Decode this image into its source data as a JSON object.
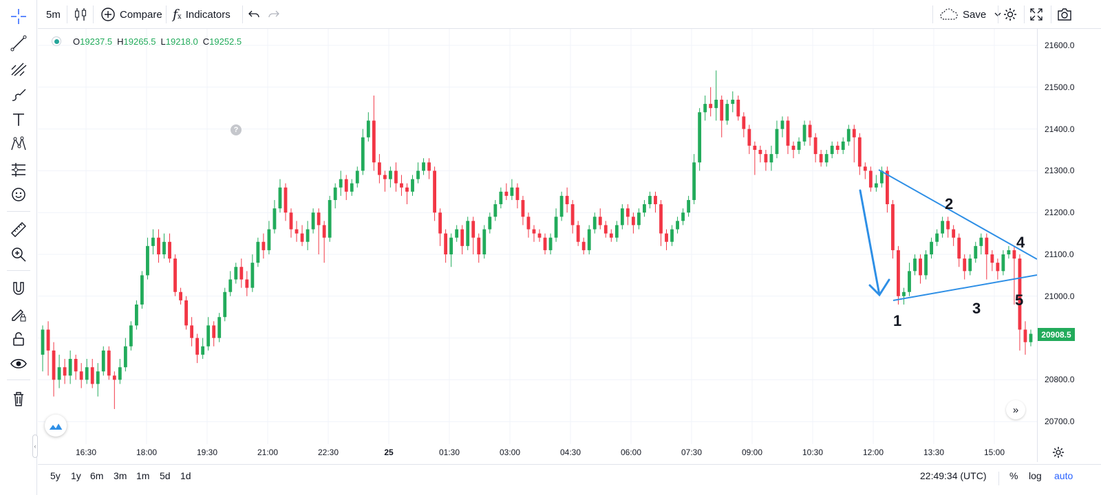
{
  "toolbar": {
    "interval": "5m",
    "compare_label": "Compare",
    "indicators_label": "Indicators",
    "save_label": "Save"
  },
  "legend": {
    "o_label": "O",
    "o_value": "19237.5",
    "h_label": "H",
    "h_value": "19265.5",
    "l_label": "L",
    "l_value": "19218.0",
    "c_label": "C",
    "c_value": "19252.5"
  },
  "help_text": "?",
  "price_scale": {
    "labels": [
      "21600.0",
      "21500.0",
      "21400.0",
      "21300.0",
      "21200.0",
      "21100.0",
      "21000.0",
      "20900.0",
      "20800.0",
      "20700.0"
    ],
    "last_price": "20908.5"
  },
  "time_axis": {
    "labels": [
      "16:30",
      "18:00",
      "19:30",
      "21:00",
      "22:30",
      "25",
      "01:30",
      "03:00",
      "04:30",
      "06:00",
      "07:30",
      "09:00",
      "10:30",
      "12:00",
      "13:30",
      "15:00"
    ]
  },
  "ranges": [
    "5y",
    "1y",
    "6m",
    "3m",
    "1m",
    "5d",
    "1d"
  ],
  "clock": "22:49:34 (UTC)",
  "scale_options": {
    "percent": "%",
    "log": "log",
    "auto": "auto"
  },
  "annotations": [
    "1",
    "2",
    "3",
    "4",
    "5"
  ],
  "colors": {
    "up": "#22ab5b",
    "down": "#f23645",
    "drawing": "#2e8fe6",
    "accent": "#2962ff"
  },
  "icons": [
    "crosshair-icon",
    "trend-line-icon",
    "fib-icon",
    "brush-icon",
    "text-icon",
    "pattern-icon",
    "forecast-icon",
    "emoji-icon",
    "ruler-icon",
    "zoom-in-icon",
    "magnet-icon",
    "lock-drawings-icon",
    "lock-icon",
    "eye-icon",
    "trash-icon"
  ],
  "chart_data": {
    "type": "candlestick",
    "instrument_note": "",
    "ylim": [
      20680,
      21640
    ],
    "y_ticks": [
      20700,
      20800,
      20900,
      21000,
      21100,
      21200,
      21300,
      21400,
      21500,
      21600
    ],
    "series": [
      {
        "name": "",
        "values": [
          [
            20860,
            20920,
            20820,
            20930
          ],
          [
            20920,
            20870,
            20810,
            20940
          ],
          [
            20870,
            20800,
            20760,
            20890
          ],
          [
            20800,
            20830,
            20780,
            20860
          ],
          [
            20830,
            20810,
            20790,
            20850
          ],
          [
            20810,
            20850,
            20790,
            20870
          ],
          [
            20850,
            20820,
            20800,
            20860
          ],
          [
            20820,
            20800,
            20780,
            20840
          ],
          [
            20800,
            20830,
            20790,
            20850
          ],
          [
            20830,
            20790,
            20780,
            20850
          ],
          [
            20790,
            20820,
            20760,
            20840
          ],
          [
            20820,
            20870,
            20810,
            20880
          ],
          [
            20870,
            20810,
            20800,
            20880
          ],
          [
            20810,
            20800,
            20730,
            20820
          ],
          [
            20800,
            20830,
            20790,
            20850
          ],
          [
            20830,
            20880,
            20820,
            20900
          ],
          [
            20880,
            20930,
            20870,
            20940
          ],
          [
            20930,
            20980,
            20920,
            20990
          ],
          [
            20980,
            21050,
            20970,
            21060
          ],
          [
            21050,
            21120,
            21040,
            21140
          ],
          [
            21120,
            21140,
            21100,
            21160
          ],
          [
            21140,
            21100,
            21080,
            21160
          ],
          [
            21100,
            21130,
            21090,
            21150
          ],
          [
            21130,
            21090,
            21080,
            21150
          ],
          [
            21090,
            21010,
            21000,
            21100
          ],
          [
            21010,
            20990,
            20980,
            21020
          ],
          [
            20990,
            20930,
            20920,
            21000
          ],
          [
            20930,
            20900,
            20880,
            20950
          ],
          [
            20900,
            20860,
            20840,
            20910
          ],
          [
            20860,
            20880,
            20850,
            20900
          ],
          [
            20880,
            20930,
            20870,
            20950
          ],
          [
            20930,
            20900,
            20880,
            20940
          ],
          [
            20900,
            20950,
            20890,
            20960
          ],
          [
            20950,
            21010,
            20940,
            21020
          ],
          [
            21010,
            21040,
            21000,
            21060
          ],
          [
            21040,
            21070,
            21030,
            21080
          ],
          [
            21070,
            21040,
            21020,
            21090
          ],
          [
            21040,
            21020,
            21000,
            21060
          ],
          [
            21020,
            21080,
            21010,
            21100
          ],
          [
            21080,
            21130,
            21070,
            21140
          ],
          [
            21130,
            21110,
            21090,
            21150
          ],
          [
            21110,
            21160,
            21100,
            21180
          ],
          [
            21160,
            21210,
            21150,
            21230
          ],
          [
            21210,
            21260,
            21200,
            21280
          ],
          [
            21260,
            21200,
            21180,
            21270
          ],
          [
            21200,
            21160,
            21140,
            21210
          ],
          [
            21160,
            21150,
            21130,
            21180
          ],
          [
            21150,
            21130,
            21120,
            21170
          ],
          [
            21130,
            21160,
            21110,
            21180
          ],
          [
            21160,
            21200,
            21150,
            21210
          ],
          [
            21200,
            21170,
            21100,
            21210
          ],
          [
            21170,
            21140,
            21080,
            21180
          ],
          [
            21140,
            21230,
            21130,
            21240
          ],
          [
            21230,
            21260,
            21210,
            21270
          ],
          [
            21260,
            21280,
            21240,
            21300
          ],
          [
            21280,
            21250,
            21230,
            21290
          ],
          [
            21250,
            21270,
            21240,
            21280
          ],
          [
            21270,
            21300,
            21260,
            21310
          ],
          [
            21300,
            21380,
            21290,
            21400
          ],
          [
            21380,
            21420,
            21370,
            21440
          ],
          [
            21420,
            21320,
            21300,
            21480
          ],
          [
            21320,
            21290,
            21270,
            21340
          ],
          [
            21290,
            21280,
            21250,
            21300
          ],
          [
            21280,
            21300,
            21260,
            21310
          ],
          [
            21300,
            21270,
            21250,
            21320
          ],
          [
            21270,
            21260,
            21240,
            21290
          ],
          [
            21260,
            21250,
            21220,
            21270
          ],
          [
            21250,
            21280,
            21240,
            21290
          ],
          [
            21280,
            21300,
            21270,
            21320
          ],
          [
            21300,
            21320,
            21290,
            21330
          ],
          [
            21320,
            21300,
            21280,
            21330
          ],
          [
            21300,
            21200,
            21180,
            21310
          ],
          [
            21200,
            21150,
            21120,
            21210
          ],
          [
            21150,
            21100,
            21080,
            21160
          ],
          [
            21100,
            21140,
            21070,
            21150
          ],
          [
            21140,
            21160,
            21130,
            21170
          ],
          [
            21160,
            21120,
            21100,
            21170
          ],
          [
            21120,
            21180,
            21110,
            21190
          ],
          [
            21180,
            21140,
            21100,
            21190
          ],
          [
            21140,
            21100,
            21080,
            21150
          ],
          [
            21100,
            21160,
            21090,
            21170
          ],
          [
            21160,
            21190,
            21150,
            21200
          ],
          [
            21190,
            21220,
            21180,
            21230
          ],
          [
            21220,
            21250,
            21210,
            21260
          ],
          [
            21250,
            21240,
            21230,
            21270
          ],
          [
            21240,
            21260,
            21230,
            21280
          ],
          [
            21260,
            21230,
            21210,
            21270
          ],
          [
            21230,
            21190,
            21170,
            21240
          ],
          [
            21190,
            21160,
            21140,
            21200
          ],
          [
            21160,
            21150,
            21130,
            21170
          ],
          [
            21150,
            21140,
            21130,
            21160
          ],
          [
            21140,
            21110,
            21100,
            21150
          ],
          [
            21110,
            21140,
            21100,
            21150
          ],
          [
            21140,
            21190,
            21130,
            21210
          ],
          [
            21190,
            21240,
            21180,
            21250
          ],
          [
            21240,
            21220,
            21200,
            21260
          ],
          [
            21220,
            21170,
            21150,
            21230
          ],
          [
            21170,
            21130,
            21120,
            21180
          ],
          [
            21130,
            21110,
            21100,
            21140
          ],
          [
            21110,
            21160,
            21100,
            21170
          ],
          [
            21160,
            21190,
            21150,
            21200
          ],
          [
            21190,
            21170,
            21160,
            21210
          ],
          [
            21170,
            21150,
            21140,
            21180
          ],
          [
            21150,
            21140,
            21130,
            21160
          ],
          [
            21140,
            21170,
            21130,
            21180
          ],
          [
            21170,
            21210,
            21160,
            21220
          ],
          [
            21210,
            21190,
            21170,
            21220
          ],
          [
            21190,
            21170,
            21150,
            21200
          ],
          [
            21170,
            21200,
            21160,
            21210
          ],
          [
            21200,
            21220,
            21190,
            21230
          ],
          [
            21220,
            21240,
            21210,
            21250
          ],
          [
            21240,
            21220,
            21200,
            21250
          ],
          [
            21220,
            21150,
            21120,
            21230
          ],
          [
            21150,
            21130,
            21110,
            21160
          ],
          [
            21130,
            21160,
            21120,
            21170
          ],
          [
            21160,
            21180,
            21150,
            21190
          ],
          [
            21180,
            21200,
            21170,
            21210
          ],
          [
            21200,
            21230,
            21190,
            21240
          ],
          [
            21230,
            21320,
            21220,
            21340
          ],
          [
            21320,
            21440,
            21300,
            21450
          ],
          [
            21440,
            21460,
            21420,
            21480
          ],
          [
            21460,
            21450,
            21430,
            21500
          ],
          [
            21450,
            21470,
            21420,
            21540
          ],
          [
            21470,
            21420,
            21380,
            21480
          ],
          [
            21420,
            21460,
            21410,
            21470
          ],
          [
            21460,
            21470,
            21440,
            21490
          ],
          [
            21470,
            21430,
            21420,
            21480
          ],
          [
            21430,
            21400,
            21380,
            21440
          ],
          [
            21400,
            21360,
            21340,
            21410
          ],
          [
            21360,
            21350,
            21290,
            21370
          ],
          [
            21350,
            21340,
            21320,
            21360
          ],
          [
            21340,
            21320,
            21300,
            21350
          ],
          [
            21320,
            21340,
            21300,
            21360
          ],
          [
            21340,
            21400,
            21330,
            21420
          ],
          [
            21400,
            21420,
            21380,
            21430
          ],
          [
            21420,
            21360,
            21340,
            21430
          ],
          [
            21360,
            21350,
            21330,
            21370
          ],
          [
            21350,
            21370,
            21340,
            21380
          ],
          [
            21370,
            21410,
            21360,
            21420
          ],
          [
            21410,
            21380,
            21360,
            21420
          ],
          [
            21380,
            21340,
            21320,
            21390
          ],
          [
            21340,
            21320,
            21310,
            21350
          ],
          [
            21320,
            21340,
            21310,
            21350
          ],
          [
            21340,
            21360,
            21330,
            21370
          ],
          [
            21360,
            21350,
            21340,
            21370
          ],
          [
            21350,
            21370,
            21340,
            21380
          ],
          [
            21370,
            21400,
            21360,
            21410
          ],
          [
            21400,
            21380,
            21320,
            21410
          ],
          [
            21380,
            21310,
            21290,
            21390
          ],
          [
            21310,
            21300,
            21280,
            21320
          ],
          [
            21300,
            21260,
            21250,
            21310
          ],
          [
            21260,
            21270,
            21250,
            21290
          ],
          [
            21270,
            21300,
            21260,
            21310
          ],
          [
            21300,
            21220,
            21200,
            21310
          ],
          [
            21220,
            21110,
            21090,
            21230
          ],
          [
            21110,
            21000,
            20980,
            21120
          ],
          [
            21000,
            21010,
            20980,
            21020
          ],
          [
            21010,
            21060,
            21000,
            21080
          ],
          [
            21060,
            21090,
            21050,
            21100
          ],
          [
            21090,
            21050,
            21030,
            21100
          ],
          [
            21050,
            21100,
            21040,
            21110
          ],
          [
            21100,
            21130,
            21090,
            21140
          ],
          [
            21130,
            21150,
            21120,
            21160
          ],
          [
            21150,
            21180,
            21140,
            21190
          ],
          [
            21180,
            21160,
            21140,
            21190
          ],
          [
            21160,
            21140,
            21120,
            21170
          ],
          [
            21140,
            21090,
            21070,
            21150
          ],
          [
            21090,
            21060,
            21040,
            21100
          ],
          [
            21060,
            21090,
            21050,
            21100
          ],
          [
            21090,
            21120,
            21080,
            21130
          ],
          [
            21120,
            21140,
            21100,
            21150
          ],
          [
            21140,
            21100,
            21040,
            21150
          ],
          [
            21100,
            21080,
            21060,
            21110
          ],
          [
            21080,
            21060,
            21040,
            21090
          ],
          [
            21060,
            21100,
            21050,
            21110
          ],
          [
            21100,
            21110,
            21090,
            21120
          ],
          [
            21110,
            21090,
            20980,
            21120
          ],
          [
            21090,
            20920,
            20870,
            21100
          ],
          [
            20920,
            20890,
            20860,
            20940
          ],
          [
            20890,
            20910,
            20880,
            20920
          ]
        ]
      }
    ]
  }
}
